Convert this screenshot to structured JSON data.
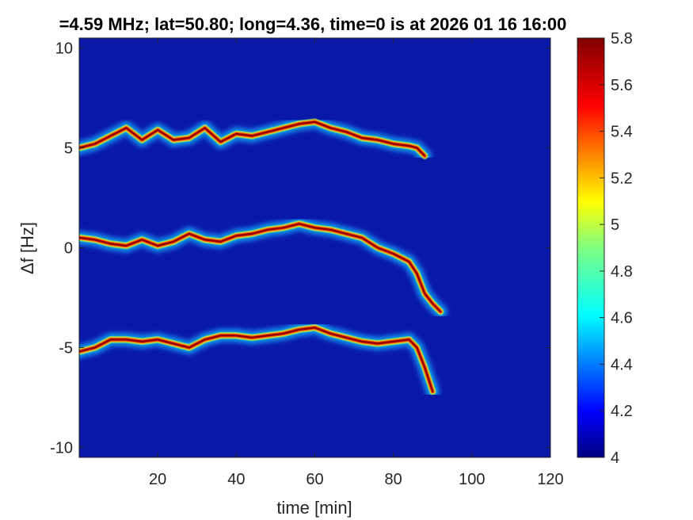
{
  "chart_data": {
    "type": "heatmap",
    "title": "=4.59 MHz;  lat=50.80; long=4.36, time=0 is at 2026 01 16 16:00",
    "xlabel": "time [min]",
    "ylabel": "Δf [Hz]",
    "xlim": [
      0,
      120
    ],
    "ylim": [
      -10.5,
      10.5
    ],
    "xticks": [
      "20",
      "40",
      "60",
      "80",
      "100",
      "120"
    ],
    "xtick_values": [
      20,
      40,
      60,
      80,
      100,
      120
    ],
    "yticks": [
      "10",
      "5",
      "0",
      "-5",
      "-10"
    ],
    "ytick_values": [
      10,
      5,
      0,
      -5,
      -10
    ],
    "colorbar": {
      "range": [
        4,
        5.8
      ],
      "ticks": [
        "5.8",
        "5.6",
        "5.4",
        "5.2",
        "5",
        "4.8",
        "4.6",
        "4.4",
        "4.2",
        "4"
      ],
      "tick_values": [
        5.8,
        5.6,
        5.4,
        5.2,
        5,
        4.8,
        4.6,
        4.4,
        4.2,
        4
      ],
      "colormap": "jet"
    },
    "background_level": 4.05,
    "colors": {
      "background": "#0a18a8"
    },
    "series": [
      {
        "time": [
          0,
          4,
          8,
          12,
          16,
          20,
          24,
          28,
          32,
          36,
          40,
          44,
          48,
          52,
          56,
          60,
          64,
          68,
          72,
          76,
          80,
          84,
          86,
          88
        ],
        "df": [
          5.0,
          5.2,
          5.6,
          6.0,
          5.4,
          5.9,
          5.4,
          5.5,
          6.0,
          5.3,
          5.7,
          5.6,
          5.8,
          6.0,
          6.2,
          6.3,
          6.0,
          5.8,
          5.5,
          5.4,
          5.2,
          5.1,
          5.0,
          4.6
        ]
      },
      {
        "time": [
          0,
          4,
          8,
          12,
          16,
          20,
          24,
          28,
          32,
          36,
          40,
          44,
          48,
          52,
          56,
          60,
          64,
          68,
          72,
          76,
          80,
          84,
          86,
          88,
          90,
          92
        ],
        "df": [
          0.5,
          0.4,
          0.2,
          0.1,
          0.4,
          0.1,
          0.3,
          0.7,
          0.4,
          0.3,
          0.6,
          0.7,
          0.9,
          1.0,
          1.2,
          1.0,
          0.9,
          0.7,
          0.5,
          0.0,
          -0.3,
          -0.7,
          -1.3,
          -2.3,
          -2.8,
          -3.2
        ]
      },
      {
        "time": [
          0,
          4,
          8,
          12,
          16,
          20,
          24,
          28,
          32,
          36,
          40,
          44,
          48,
          52,
          56,
          60,
          64,
          68,
          72,
          76,
          80,
          84,
          86,
          88,
          90
        ],
        "df": [
          -5.2,
          -5.0,
          -4.6,
          -4.6,
          -4.7,
          -4.6,
          -4.8,
          -5.0,
          -4.6,
          -4.4,
          -4.4,
          -4.5,
          -4.4,
          -4.3,
          -4.1,
          -4.0,
          -4.3,
          -4.5,
          -4.7,
          -4.8,
          -4.7,
          -4.6,
          -5.0,
          -6.0,
          -7.2
        ]
      }
    ],
    "grid": false
  }
}
